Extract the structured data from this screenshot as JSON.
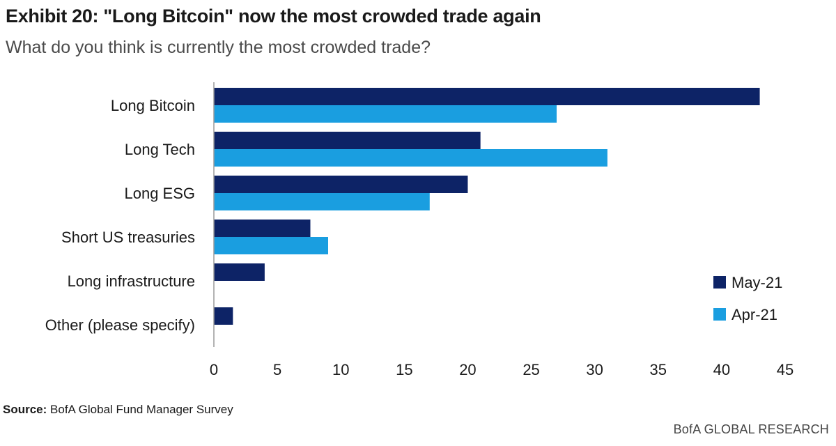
{
  "header": {
    "title": "Exhibit 20: \"Long Bitcoin\" now the most crowded trade again",
    "subtitle": "What do you think is currently the most crowded trade?"
  },
  "footer": {
    "source_label": "Source:",
    "source_text": " BofA Global Fund Manager Survey",
    "brand": "BofA GLOBAL RESEARCH"
  },
  "chart_data": {
    "type": "bar",
    "orientation": "horizontal",
    "title": "Exhibit 20: \"Long Bitcoin\" now the most crowded trade again",
    "subtitle": "What do you think is currently the most crowded trade?",
    "categories": [
      "Long Bitcoin",
      "Long Tech",
      "Long ESG",
      "Short US treasuries",
      "Long infrastructure",
      "Other (please specify)"
    ],
    "series": [
      {
        "name": "May-21",
        "color": "#0d2366",
        "values": [
          43,
          21,
          20,
          7.6,
          4,
          1.5
        ]
      },
      {
        "name": "Apr-21",
        "color": "#1a9ee0",
        "values": [
          27,
          31,
          17,
          9,
          0,
          0
        ]
      }
    ],
    "xlim": [
      0,
      45
    ],
    "x_ticks": [
      "0",
      "5",
      "10",
      "15",
      "20",
      "25",
      "30",
      "35",
      "40",
      "45"
    ],
    "xlabel": "",
    "ylabel": "",
    "grid": false,
    "legend_position": "right"
  }
}
